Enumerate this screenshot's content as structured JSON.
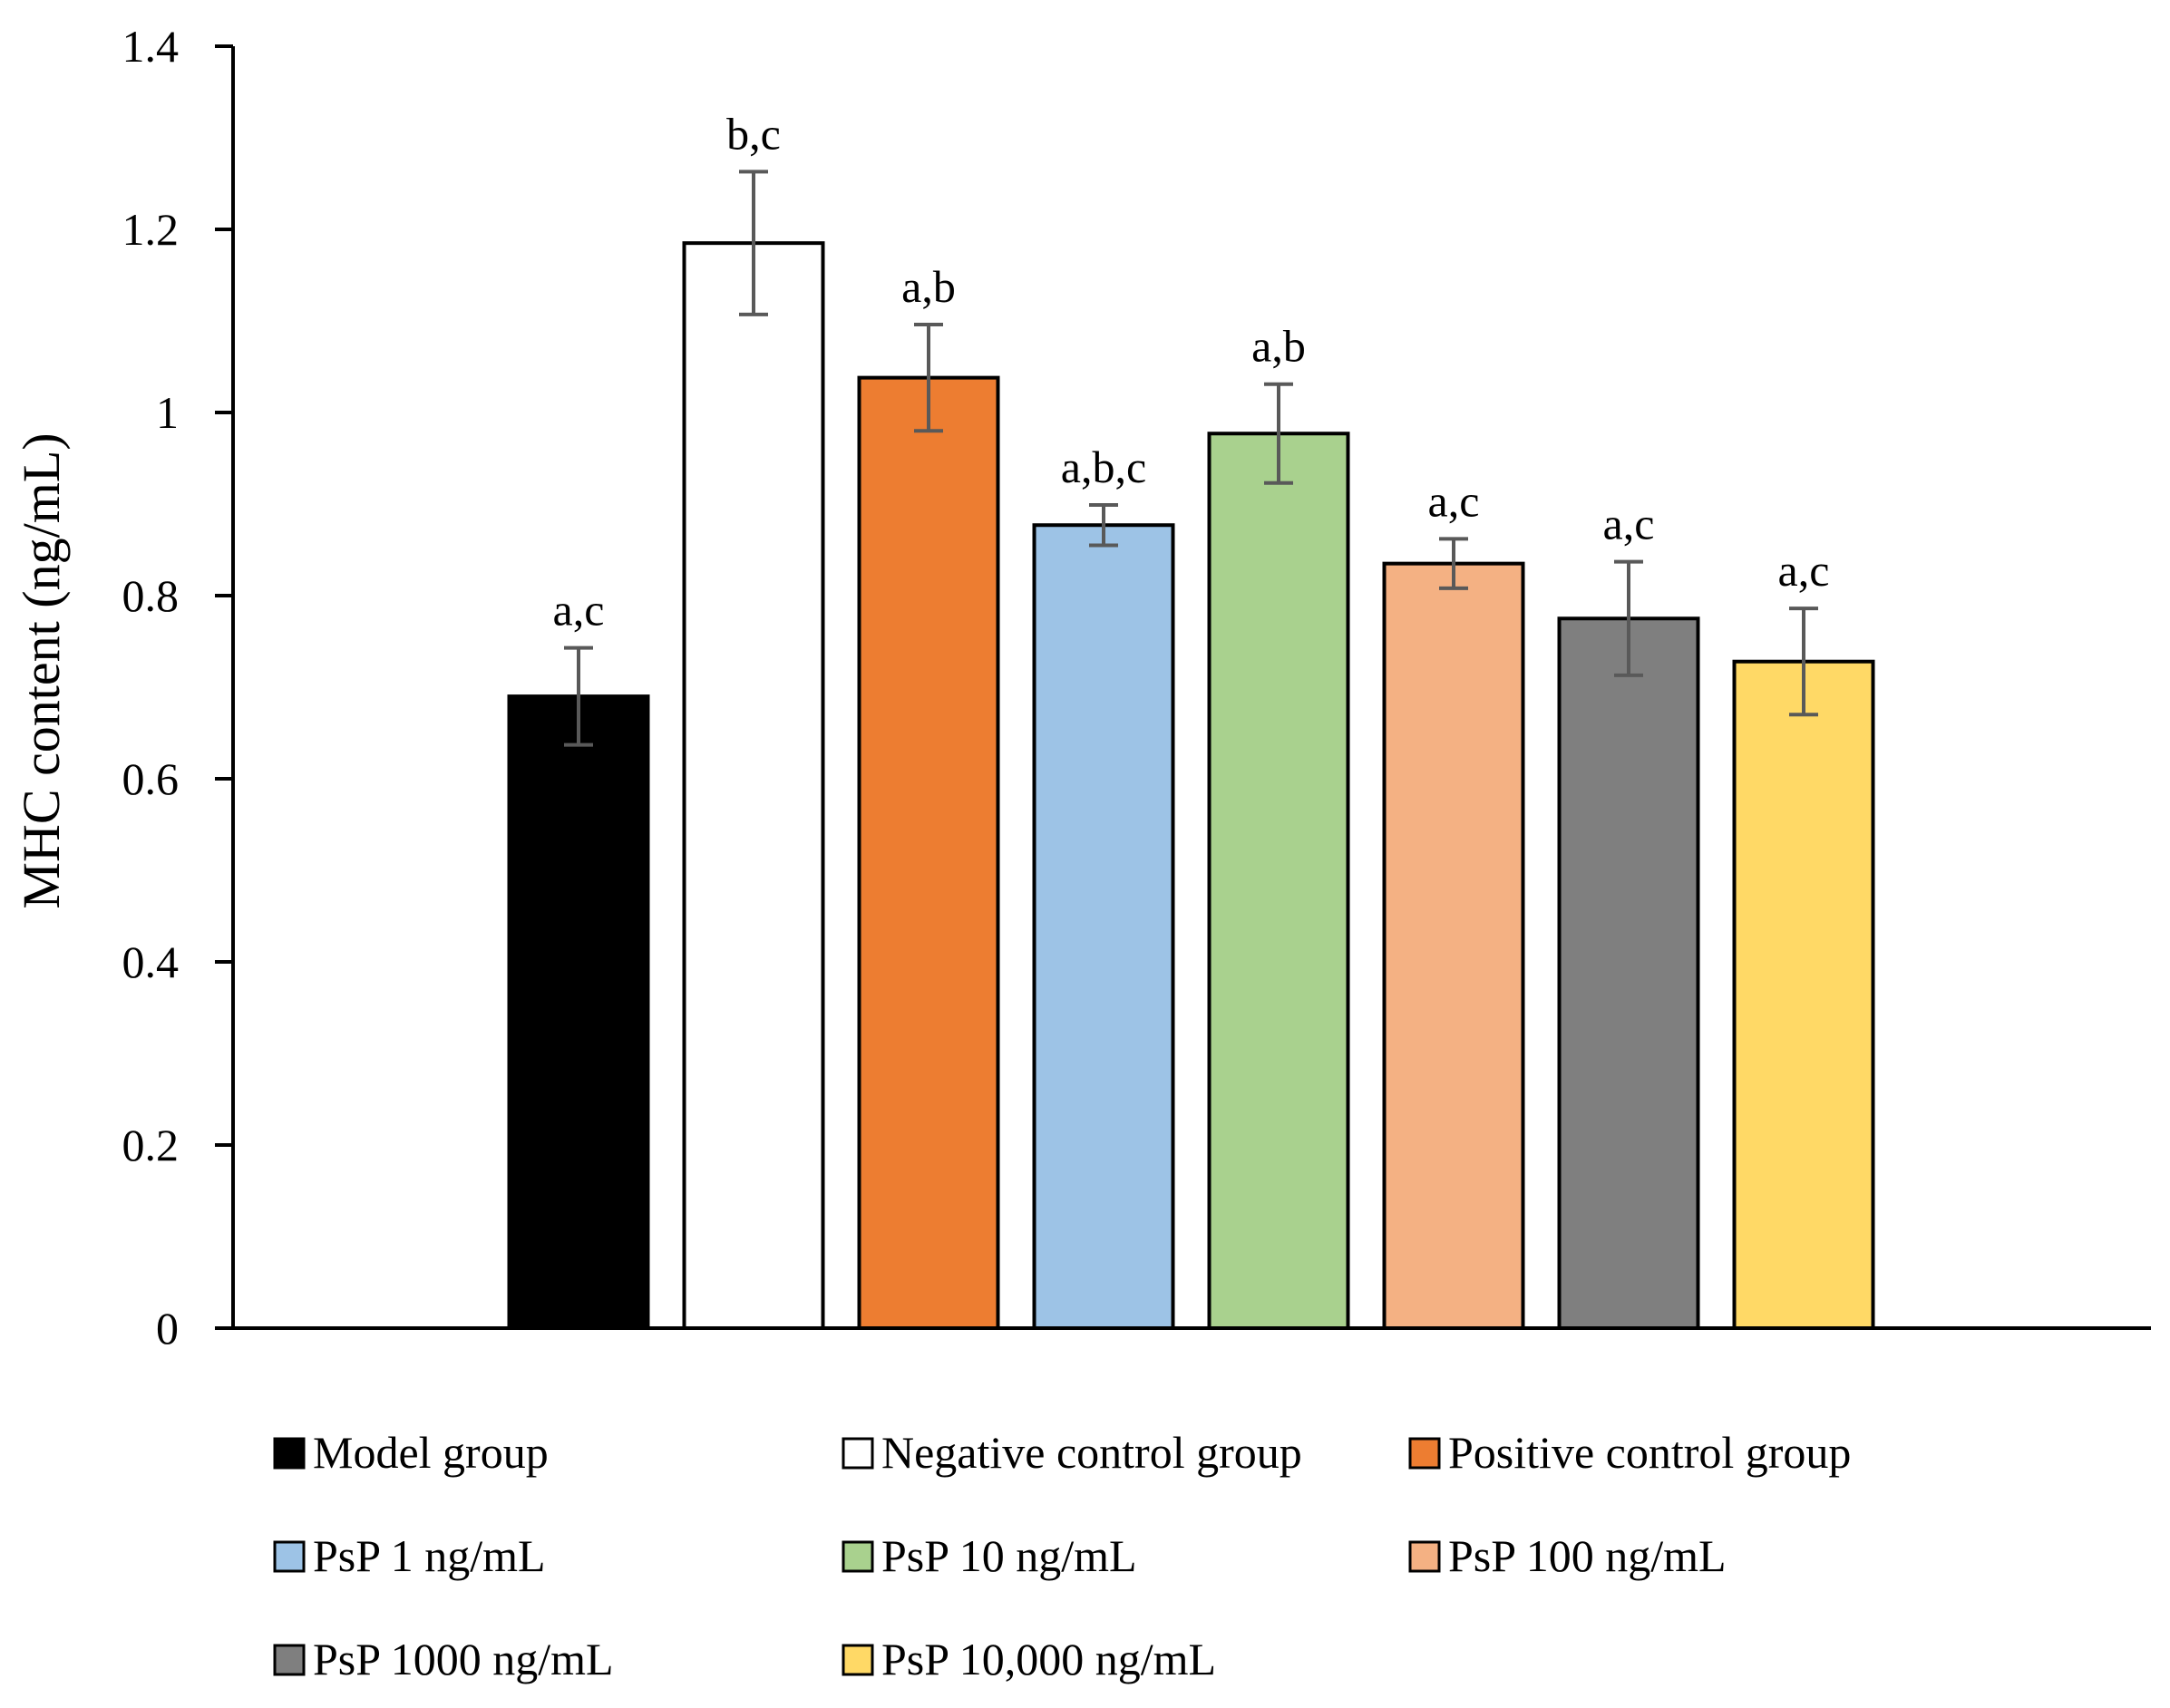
{
  "chart_data": {
    "type": "bar",
    "title": "",
    "xlabel": "",
    "ylabel": "MHC content (ng/mL)",
    "ylim": [
      0,
      1.4
    ],
    "yticks": [
      0,
      0.2,
      0.4,
      0.6,
      0.8,
      1,
      1.2,
      1.4
    ],
    "ytick_labels": [
      "0",
      "0.2",
      "0.4",
      "0.6",
      "0.8",
      "1",
      "1.2",
      "1.4"
    ],
    "grid": false,
    "legend_position": "bottom",
    "series": [
      {
        "name": "Model group",
        "value": 0.69,
        "error": 0.053,
        "label": "a,c",
        "color": "#000000"
      },
      {
        "name": "Negative control group",
        "value": 1.185,
        "error": 0.078,
        "label": "b,c",
        "color": "#ffffff"
      },
      {
        "name": "Positive control group",
        "value": 1.038,
        "error": 0.058,
        "label": "a,b",
        "color": "#ed7d31"
      },
      {
        "name": "PsP 1 ng/mL",
        "value": 0.877,
        "error": 0.022,
        "label": "a,b,c",
        "color": "#9dc3e6"
      },
      {
        "name": "PsP 10 ng/mL",
        "value": 0.977,
        "error": 0.054,
        "label": "a,b",
        "color": "#a9d18e"
      },
      {
        "name": "PsP 100 ng/mL",
        "value": 0.835,
        "error": 0.027,
        "label": "a,c",
        "color": "#f4b183"
      },
      {
        "name": "PsP 1000 ng/mL",
        "value": 0.775,
        "error": 0.062,
        "label": "a,c",
        "color": "#7f7f7f"
      },
      {
        "name": "PsP 10,000 ng/mL",
        "value": 0.728,
        "error": 0.058,
        "label": "a,c",
        "color": "#ffd966"
      }
    ]
  },
  "colors": {
    "axis": "#000000",
    "bar_outline": "#000000",
    "error_bar": "#595959"
  }
}
